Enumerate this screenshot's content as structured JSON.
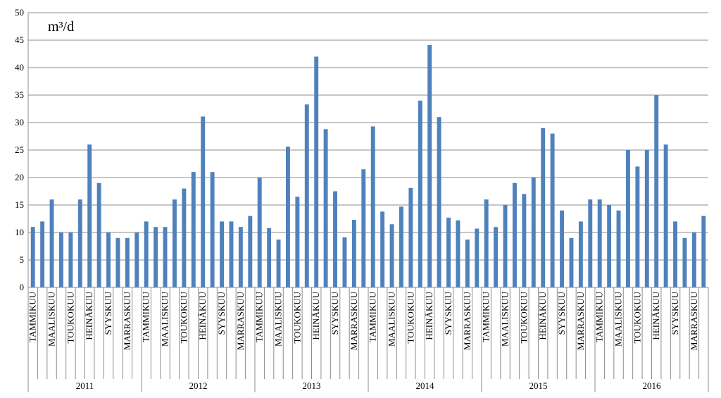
{
  "chart_data": {
    "type": "bar",
    "ylabel": "m³/d",
    "color": "#4f81bd",
    "categories": [
      "TAMMIKUU",
      null,
      "MAALISKUU",
      null,
      "TOUKOKUU",
      null,
      "HEINÄKUU",
      null,
      "SYYSKUU",
      null,
      "MARRASKUU",
      null,
      "TAMMIKUU",
      null,
      "MAALISKUU",
      null,
      "TOUKOKUU",
      null,
      "HEINÄKUU",
      null,
      "SYYSKUU",
      null,
      "MARRASKUU",
      null,
      "TAMMIKUU",
      null,
      "MAALISKUU",
      null,
      "TOUKOKUU",
      null,
      "HEINÄKUU",
      null,
      "SYYSKUU",
      null,
      "MARRASKUU",
      null,
      "TAMMIKUU",
      null,
      "MAALISKUU",
      null,
      "TOUKOKUU",
      null,
      "HEINÄKUU",
      null,
      "SYYSKUU",
      null,
      "MARRASKUU",
      null,
      "TAMMIKUU",
      null,
      "MAALISKUU",
      null,
      "TOUKOKUU",
      null,
      "HEINÄKUU",
      null,
      "SYYSKUU",
      null,
      "MARRASKUU",
      null,
      "TAMMIKUU",
      null,
      "MAALISKUU",
      null,
      "TOUKOKUU",
      null,
      "HEINÄKUU",
      null,
      "SYYSKUU",
      null,
      "MARRASKUU",
      null
    ],
    "groups": [
      "2011",
      "2012",
      "2013",
      "2014",
      "2015",
      "2016"
    ],
    "values": [
      11,
      12,
      16,
      10,
      10,
      16,
      26,
      19,
      10,
      9,
      9,
      10,
      12,
      11,
      11,
      16,
      18,
      21,
      31.1,
      21,
      12,
      12,
      11,
      13,
      20,
      10.8,
      8.7,
      25.6,
      16.5,
      33.3,
      42,
      28.8,
      17.5,
      9.1,
      12.3,
      21.5,
      29.3,
      13.8,
      11.5,
      14.7,
      18.1,
      34,
      44.1,
      31,
      12.7,
      12.2,
      8.7,
      10.7,
      16,
      11,
      15,
      19,
      17,
      20,
      29,
      28,
      14,
      9,
      12,
      16,
      16,
      15,
      14,
      25,
      22,
      25,
      35,
      26,
      12,
      9,
      10,
      13
    ],
    "ylim": [
      0,
      50
    ],
    "yticks": [
      0,
      5,
      10,
      15,
      20,
      25,
      30,
      35,
      40,
      45,
      50
    ],
    "grid": true
  }
}
